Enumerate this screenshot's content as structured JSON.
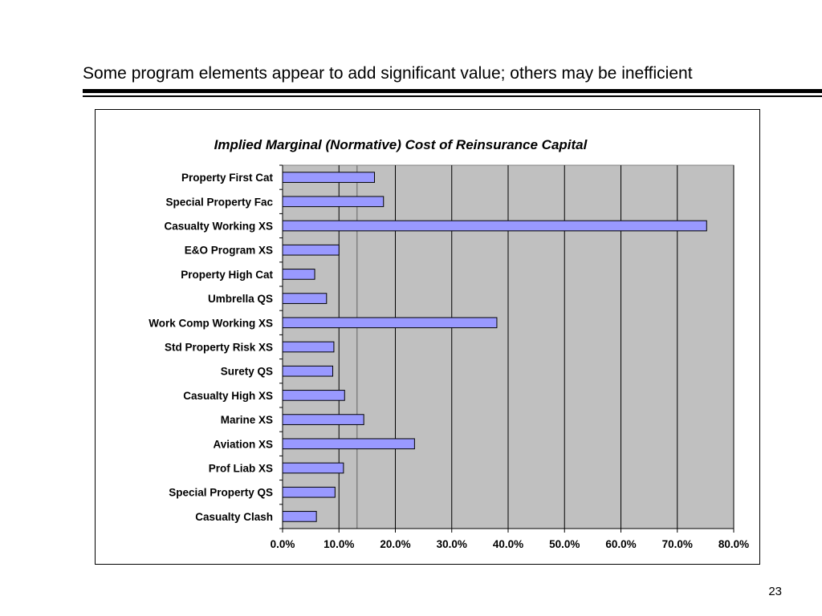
{
  "slide": {
    "title": "Some program elements appear to add significant value; others may be inefficient",
    "page_number": "23"
  },
  "chart_data": {
    "type": "bar",
    "orientation": "horizontal",
    "title": "Implied Marginal (Normative) Cost of Reinsurance Capital",
    "xlabel": "",
    "ylabel": "",
    "xlim": [
      0,
      0.8
    ],
    "xticks": [
      "0.0%",
      "10.0%",
      "20.0%",
      "30.0%",
      "40.0%",
      "50.0%",
      "60.0%",
      "70.0%",
      "80.0%"
    ],
    "categories": [
      "Property First Cat",
      "Special Property Fac",
      "Casualty Working XS",
      "E&O Program XS",
      "Property High Cat",
      "Umbrella QS",
      "Work Comp Working XS",
      "Std Property Risk XS",
      "Surety QS",
      "Casualty High XS",
      "Marine XS",
      "Aviation XS",
      "Prof Liab XS",
      "Special Property QS",
      "Casualty Clash"
    ],
    "values": [
      0.163,
      0.179,
      0.752,
      0.1,
      0.057,
      0.078,
      0.38,
      0.091,
      0.089,
      0.11,
      0.144,
      0.234,
      0.108,
      0.093,
      0.06
    ],
    "reference_line": 0.132,
    "grid": true,
    "colors": {
      "bar_fill": "#9999ff",
      "bar_stroke": "#000000",
      "plot_background": "#c0c0c0",
      "reference_line": "#808080"
    }
  }
}
